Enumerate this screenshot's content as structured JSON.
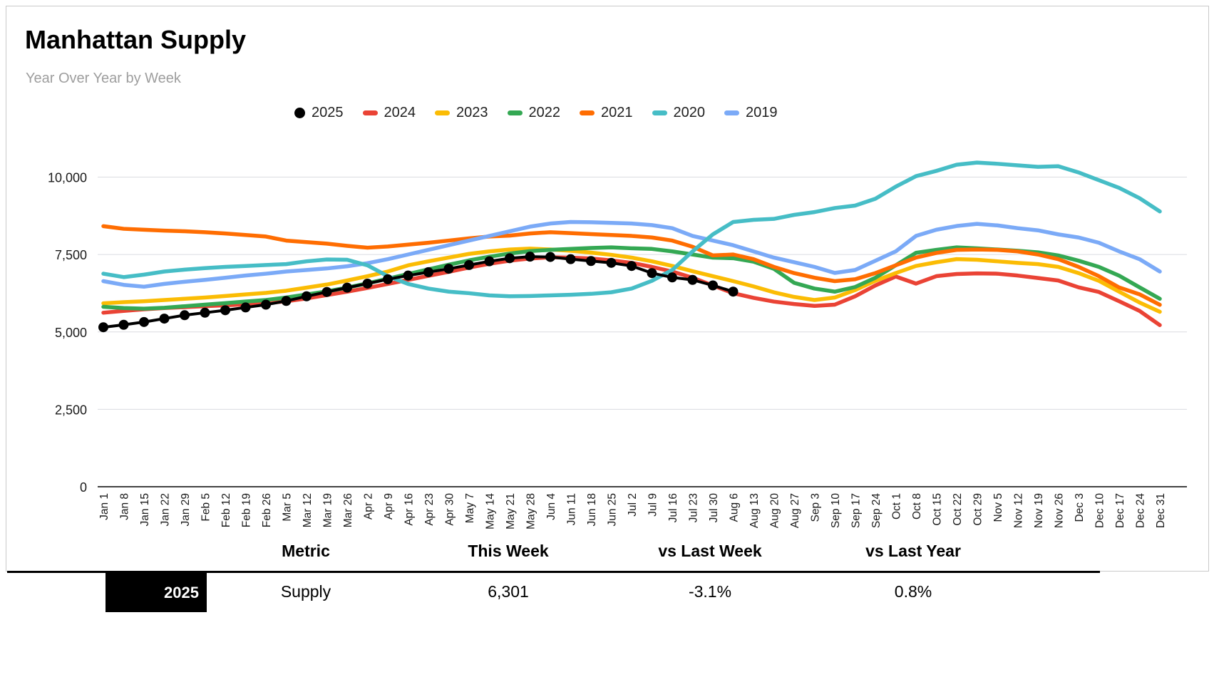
{
  "chart_data": {
    "type": "line",
    "title": "Manhattan Supply",
    "subtitle": "Year Over Year by Week",
    "xlabel": "",
    "ylabel": "",
    "ylim": [
      0,
      10870
    ],
    "grid": true,
    "legend_position": "top",
    "y_ticks": [
      {
        "label": "0",
        "value": 0
      },
      {
        "label": "2,500",
        "value": 2500
      },
      {
        "label": "5,000",
        "value": 5000
      },
      {
        "label": "7,500",
        "value": 7500
      },
      {
        "label": "10,000",
        "value": 10000
      }
    ],
    "x_labels": [
      "Jan 1",
      "Jan 8",
      "Jan 15",
      "Jan 22",
      "Jan 29",
      "Feb 5",
      "Feb 12",
      "Feb 19",
      "Feb 26",
      "Mar 5",
      "Mar 12",
      "Mar 19",
      "Mar 26",
      "Apr 2",
      "Apr 9",
      "Apr 16",
      "Apr 23",
      "Apr 30",
      "May 7",
      "May 14",
      "May 21",
      "May 28",
      "Jun 4",
      "Jun 11",
      "Jun 18",
      "Jun 25",
      "Jul 2",
      "Jul 9",
      "Jul 16",
      "Jul 23",
      "Jul 30",
      "Aug 6",
      "Aug 13",
      "Aug 20",
      "Aug 27",
      "Sep 3",
      "Sep 10",
      "Sep 17",
      "Sep 24",
      "Oct 1",
      "Oct 8",
      "Oct 15",
      "Oct 22",
      "Oct 29",
      "Nov 5",
      "Nov 12",
      "Nov 19",
      "Nov 26",
      "Dec 3",
      "Dec 10",
      "Dec 17",
      "Dec 24",
      "Dec 31"
    ],
    "series": [
      {
        "name": "2025",
        "color": "#000000",
        "marker": "circle",
        "values": [
          5150,
          5230,
          5320,
          5430,
          5540,
          5620,
          5700,
          5790,
          5880,
          6000,
          6150,
          6290,
          6430,
          6560,
          6700,
          6820,
          6930,
          7040,
          7160,
          7280,
          7380,
          7430,
          7420,
          7350,
          7290,
          7230,
          7130,
          6900,
          6760,
          6680,
          6502,
          6301
        ]
      },
      {
        "name": "2024",
        "color": "#EA4335",
        "marker": "none",
        "values": [
          5620,
          5680,
          5730,
          5770,
          5800,
          5830,
          5860,
          5890,
          5930,
          5990,
          6080,
          6190,
          6300,
          6420,
          6550,
          6680,
          6810,
          6940,
          7080,
          7200,
          7300,
          7370,
          7410,
          7400,
          7370,
          7310,
          7230,
          7100,
          6950,
          6750,
          6500,
          6251,
          6100,
          5980,
          5900,
          5840,
          5880,
          6150,
          6500,
          6790,
          6560,
          6800,
          6870,
          6890,
          6880,
          6820,
          6740,
          6660,
          6440,
          6290,
          5990,
          5680,
          5220
        ]
      },
      {
        "name": "2023",
        "color": "#FBBC04",
        "marker": "none",
        "values": [
          5925,
          5960,
          5990,
          6030,
          6070,
          6110,
          6160,
          6210,
          6260,
          6330,
          6430,
          6530,
          6660,
          6800,
          6950,
          7150,
          7280,
          7400,
          7520,
          7600,
          7660,
          7690,
          7660,
          7620,
          7560,
          7490,
          7400,
          7280,
          7130,
          6960,
          6800,
          6640,
          6470,
          6280,
          6130,
          6030,
          6110,
          6350,
          6650,
          6900,
          7130,
          7250,
          7350,
          7330,
          7280,
          7230,
          7190,
          7100,
          6900,
          6650,
          6300,
          5950,
          5650
        ]
      },
      {
        "name": "2022",
        "color": "#34A853",
        "marker": "none",
        "values": [
          5810,
          5770,
          5750,
          5780,
          5830,
          5880,
          5930,
          5980,
          6030,
          6110,
          6210,
          6310,
          6430,
          6570,
          6720,
          6870,
          7020,
          7170,
          7310,
          7430,
          7530,
          7610,
          7650,
          7680,
          7710,
          7730,
          7700,
          7680,
          7600,
          7500,
          7400,
          7380,
          7270,
          7040,
          6585,
          6400,
          6300,
          6450,
          6750,
          7150,
          7555,
          7650,
          7730,
          7700,
          7660,
          7620,
          7570,
          7470,
          7300,
          7100,
          6815,
          6440,
          6070
        ]
      },
      {
        "name": "2021",
        "color": "#FF6D01",
        "marker": "none",
        "values": [
          8415,
          8330,
          8300,
          8270,
          8250,
          8220,
          8180,
          8130,
          8080,
          7950,
          7900,
          7850,
          7780,
          7720,
          7760,
          7820,
          7880,
          7950,
          8020,
          8080,
          8110,
          8180,
          8220,
          8190,
          8160,
          8130,
          8100,
          8050,
          7950,
          7750,
          7470,
          7500,
          7350,
          7100,
          6900,
          6750,
          6640,
          6700,
          6900,
          7150,
          7400,
          7550,
          7650,
          7660,
          7650,
          7600,
          7500,
          7350,
          7100,
          6800,
          6435,
          6215,
          5875
        ]
      },
      {
        "name": "2020",
        "color": "#46BDC6",
        "marker": "none",
        "values": [
          6880,
          6770,
          6850,
          6950,
          7010,
          7060,
          7100,
          7130,
          7160,
          7190,
          7280,
          7340,
          7330,
          7150,
          6800,
          6550,
          6400,
          6300,
          6250,
          6180,
          6150,
          6160,
          6180,
          6200,
          6230,
          6280,
          6400,
          6650,
          7000,
          7600,
          8150,
          8550,
          8620,
          8650,
          8780,
          8870,
          9000,
          9080,
          9300,
          9690,
          10030,
          10200,
          10400,
          10470,
          10430,
          10380,
          10330,
          10350,
          10150,
          9900,
          9650,
          9320,
          8890
        ]
      },
      {
        "name": "2019",
        "color": "#7BAAF7",
        "marker": "none",
        "values": [
          6640,
          6520,
          6460,
          6550,
          6620,
          6680,
          6750,
          6820,
          6880,
          6950,
          7000,
          7050,
          7120,
          7220,
          7350,
          7500,
          7650,
          7800,
          7950,
          8100,
          8250,
          8400,
          8500,
          8550,
          8540,
          8520,
          8500,
          8450,
          8350,
          8100,
          7950,
          7800,
          7600,
          7400,
          7250,
          7100,
          6905,
          7000,
          7300,
          7600,
          8100,
          8300,
          8420,
          8490,
          8440,
          8350,
          8280,
          8150,
          8050,
          7880,
          7600,
          7350,
          6950
        ]
      }
    ]
  },
  "table": {
    "headers": [
      "Metric",
      "This Week",
      "vs Last Week",
      "vs Last Year"
    ],
    "row": {
      "year": "2025",
      "metric": "Supply",
      "this_week": "6,301",
      "vs_last_week": "-3.1%",
      "vs_last_year": "0.8%"
    }
  }
}
